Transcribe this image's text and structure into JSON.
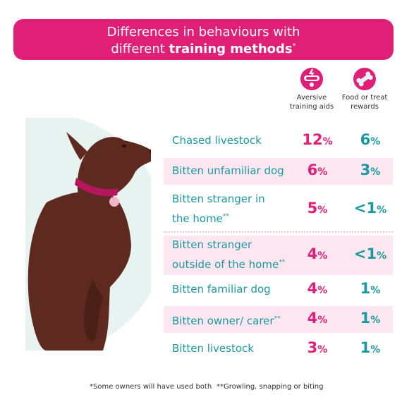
{
  "header": {
    "line1": "Differences in behaviours with",
    "line2_plain": "different ",
    "line2_bold": "training methods",
    "line2_sup": "*"
  },
  "columns": [
    {
      "label_line1": "Aversive",
      "label_line2": "training aids",
      "icon": "electric-collar-icon",
      "color": "#e01f77"
    },
    {
      "label_line1": "Food or treat",
      "label_line2": "rewards",
      "icon": "treat-bone-icon",
      "color": "#1a9aa0"
    }
  ],
  "rows": [
    {
      "label_line1": "Chased livestock",
      "label_line2": "",
      "sup": "",
      "aversive": "12",
      "reward": "6",
      "reward_prefix": ""
    },
    {
      "label_line1": "Bitten unfamiliar dog",
      "label_line2": "",
      "sup": "",
      "aversive": "6",
      "reward": "3",
      "reward_prefix": ""
    },
    {
      "label_line1": "Bitten stranger in",
      "label_line2": "the home",
      "sup": "**",
      "aversive": "5",
      "reward": "1",
      "reward_prefix": "<"
    },
    {
      "label_line1": "Bitten stranger",
      "label_line2": "outside of the home",
      "sup": "**",
      "aversive": "4",
      "reward": "1",
      "reward_prefix": "<"
    },
    {
      "label_line1": "Bitten familiar dog",
      "label_line2": "",
      "sup": "",
      "aversive": "4",
      "reward": "1",
      "reward_prefix": ""
    },
    {
      "label_line1": "Bitten owner/ carer",
      "label_line2": "",
      "sup": "**",
      "aversive": "4",
      "reward": "1",
      "reward_prefix": ""
    },
    {
      "label_line1": "Bitten livestock",
      "label_line2": "",
      "sup": "",
      "aversive": "3",
      "reward": "1",
      "reward_prefix": ""
    }
  ],
  "percent_sign": "%",
  "footnotes": {
    "left": "*Some owners will have used both",
    "right": "**Growling, snapping or biting"
  },
  "colors": {
    "brand_pink": "#e01f77",
    "teal": "#1a9aa0",
    "row_shade": "#fce6ef",
    "dog": "#5e2a1f",
    "collar": "#b5175f",
    "backdrop": "#e6f3f1"
  }
}
